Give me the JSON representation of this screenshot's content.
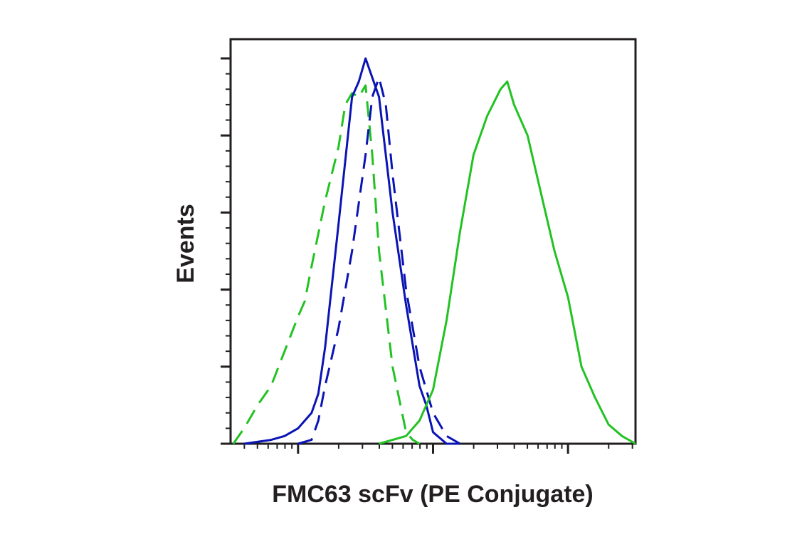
{
  "chart_data": {
    "type": "line",
    "title": "",
    "xlabel": "FMC63 scFv (PE Conjugate)",
    "ylabel": "Events",
    "x_scale": "log",
    "xlim": [
      -0.5,
      2.5
    ],
    "ylim": [
      0,
      100
    ],
    "x_major_ticks": [
      0,
      1,
      2
    ],
    "y_major_ticks": [
      0,
      20,
      40,
      60,
      80,
      100
    ],
    "tick_labels_shown": false,
    "grid": false,
    "legend": "none",
    "series": [
      {
        "name": "green-dashed",
        "color": "#22c222",
        "dash": true,
        "x": [
          -0.48,
          -0.4,
          -0.3,
          -0.2,
          -0.1,
          0.0,
          0.05,
          0.1,
          0.2,
          0.3,
          0.35,
          0.4,
          0.45,
          0.5,
          0.55,
          0.6,
          0.7,
          0.8,
          0.85,
          0.9
        ],
        "y": [
          0,
          4,
          10,
          15,
          24,
          33,
          37,
          46,
          63,
          77,
          88,
          91,
          90,
          93,
          75,
          50,
          20,
          3,
          1,
          0
        ]
      },
      {
        "name": "blue-solid",
        "color": "#0a14b4",
        "dash": false,
        "x": [
          -0.4,
          -0.2,
          -0.1,
          0.0,
          0.1,
          0.15,
          0.2,
          0.3,
          0.4,
          0.45,
          0.5,
          0.6,
          0.7,
          0.8,
          0.9,
          0.95,
          1.0,
          1.1,
          1.2
        ],
        "y": [
          0,
          1,
          2,
          4,
          8,
          13,
          25,
          57,
          90,
          94,
          100,
          90,
          60,
          36,
          15,
          10,
          3,
          0,
          0
        ]
      },
      {
        "name": "blue-dashed",
        "color": "#0a14b4",
        "dash": true,
        "x": [
          0.0,
          0.1,
          0.15,
          0.2,
          0.3,
          0.4,
          0.5,
          0.55,
          0.6,
          0.65,
          0.7,
          0.8,
          0.9,
          1.0,
          1.1,
          1.2
        ],
        "y": [
          0,
          1,
          6,
          15,
          30,
          50,
          75,
          90,
          95,
          88,
          70,
          40,
          20,
          8,
          2,
          0
        ]
      },
      {
        "name": "green-solid",
        "color": "#22c222",
        "dash": false,
        "x": [
          0.6,
          0.8,
          0.9,
          1.0,
          1.1,
          1.2,
          1.3,
          1.4,
          1.5,
          1.55,
          1.6,
          1.7,
          1.8,
          1.9,
          2.0,
          2.1,
          2.2,
          2.3,
          2.4,
          2.5
        ],
        "y": [
          0,
          2,
          6,
          14,
          32,
          55,
          75,
          85,
          92,
          94,
          88,
          80,
          65,
          50,
          38,
          20,
          12,
          5,
          2,
          0
        ]
      }
    ]
  }
}
